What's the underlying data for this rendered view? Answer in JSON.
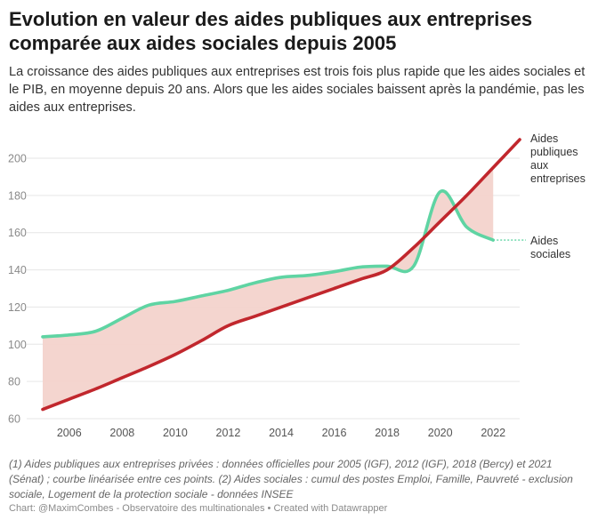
{
  "title": "Evolution en valeur des aides publiques aux entreprises comparée aux aides sociales depuis 2005",
  "subtitle": "La croissance des aides publiques aux entreprises est trois fois plus rapide que les aides sociales et le PIB, en moyenne depuis 20 ans. Alors que les aides sociales baissent après la pandémie, pas les aides aux entreprises.",
  "notes": "(1) Aides publiques aux entreprises privées : données officielles pour 2005 (IGF), 2012 (IGF), 2018 (Bercy) et 2021 (Sénat) ; courbe linéarisée entre ces points. (2) Aides sociales : cumul des postes Emploi, Famille, Pauvreté - exclusion sociale, Logement de la protection sociale - données INSEE",
  "credit": "Chart: @MaximCombes - Observatoire des multinationales • Created with Datawrapper",
  "colors": {
    "entreprises": "#c1272d",
    "sociales": "#5fd4a3",
    "fill": "#f3d3cc",
    "grid": "#e6e6e6"
  },
  "chart_data": {
    "type": "line",
    "ylim": [
      60,
      210
    ],
    "yticks": [
      60,
      80,
      100,
      120,
      140,
      160,
      180,
      200
    ],
    "xticks": [
      2006,
      2008,
      2010,
      2012,
      2014,
      2016,
      2018,
      2020,
      2022
    ],
    "grid": true,
    "fill_between": true,
    "series": [
      {
        "name": "Aides publiques aux entreprises",
        "label_lines": [
          "Aides",
          "publiques",
          "aux",
          "entreprises"
        ],
        "x": [
          2005,
          2006,
          2007,
          2008,
          2009,
          2010,
          2011,
          2012,
          2013,
          2014,
          2015,
          2016,
          2017,
          2018,
          2019,
          2020,
          2021,
          2022,
          2023
        ],
        "y": [
          65,
          70.5,
          76,
          82,
          88,
          94.5,
          102,
          110,
          115,
          120,
          125,
          130,
          135,
          140,
          152,
          166,
          180,
          195,
          210
        ]
      },
      {
        "name": "Aides sociales",
        "label_lines": [
          "Aides",
          "sociales"
        ],
        "x": [
          2005,
          2006,
          2007,
          2008,
          2009,
          2010,
          2011,
          2012,
          2013,
          2014,
          2015,
          2016,
          2017,
          2018,
          2019,
          2020,
          2021,
          2022
        ],
        "y": [
          104,
          105,
          107,
          114,
          121,
          123,
          126,
          129,
          133,
          136,
          137,
          139,
          141.5,
          142,
          142,
          182,
          163,
          156
        ]
      }
    ]
  }
}
